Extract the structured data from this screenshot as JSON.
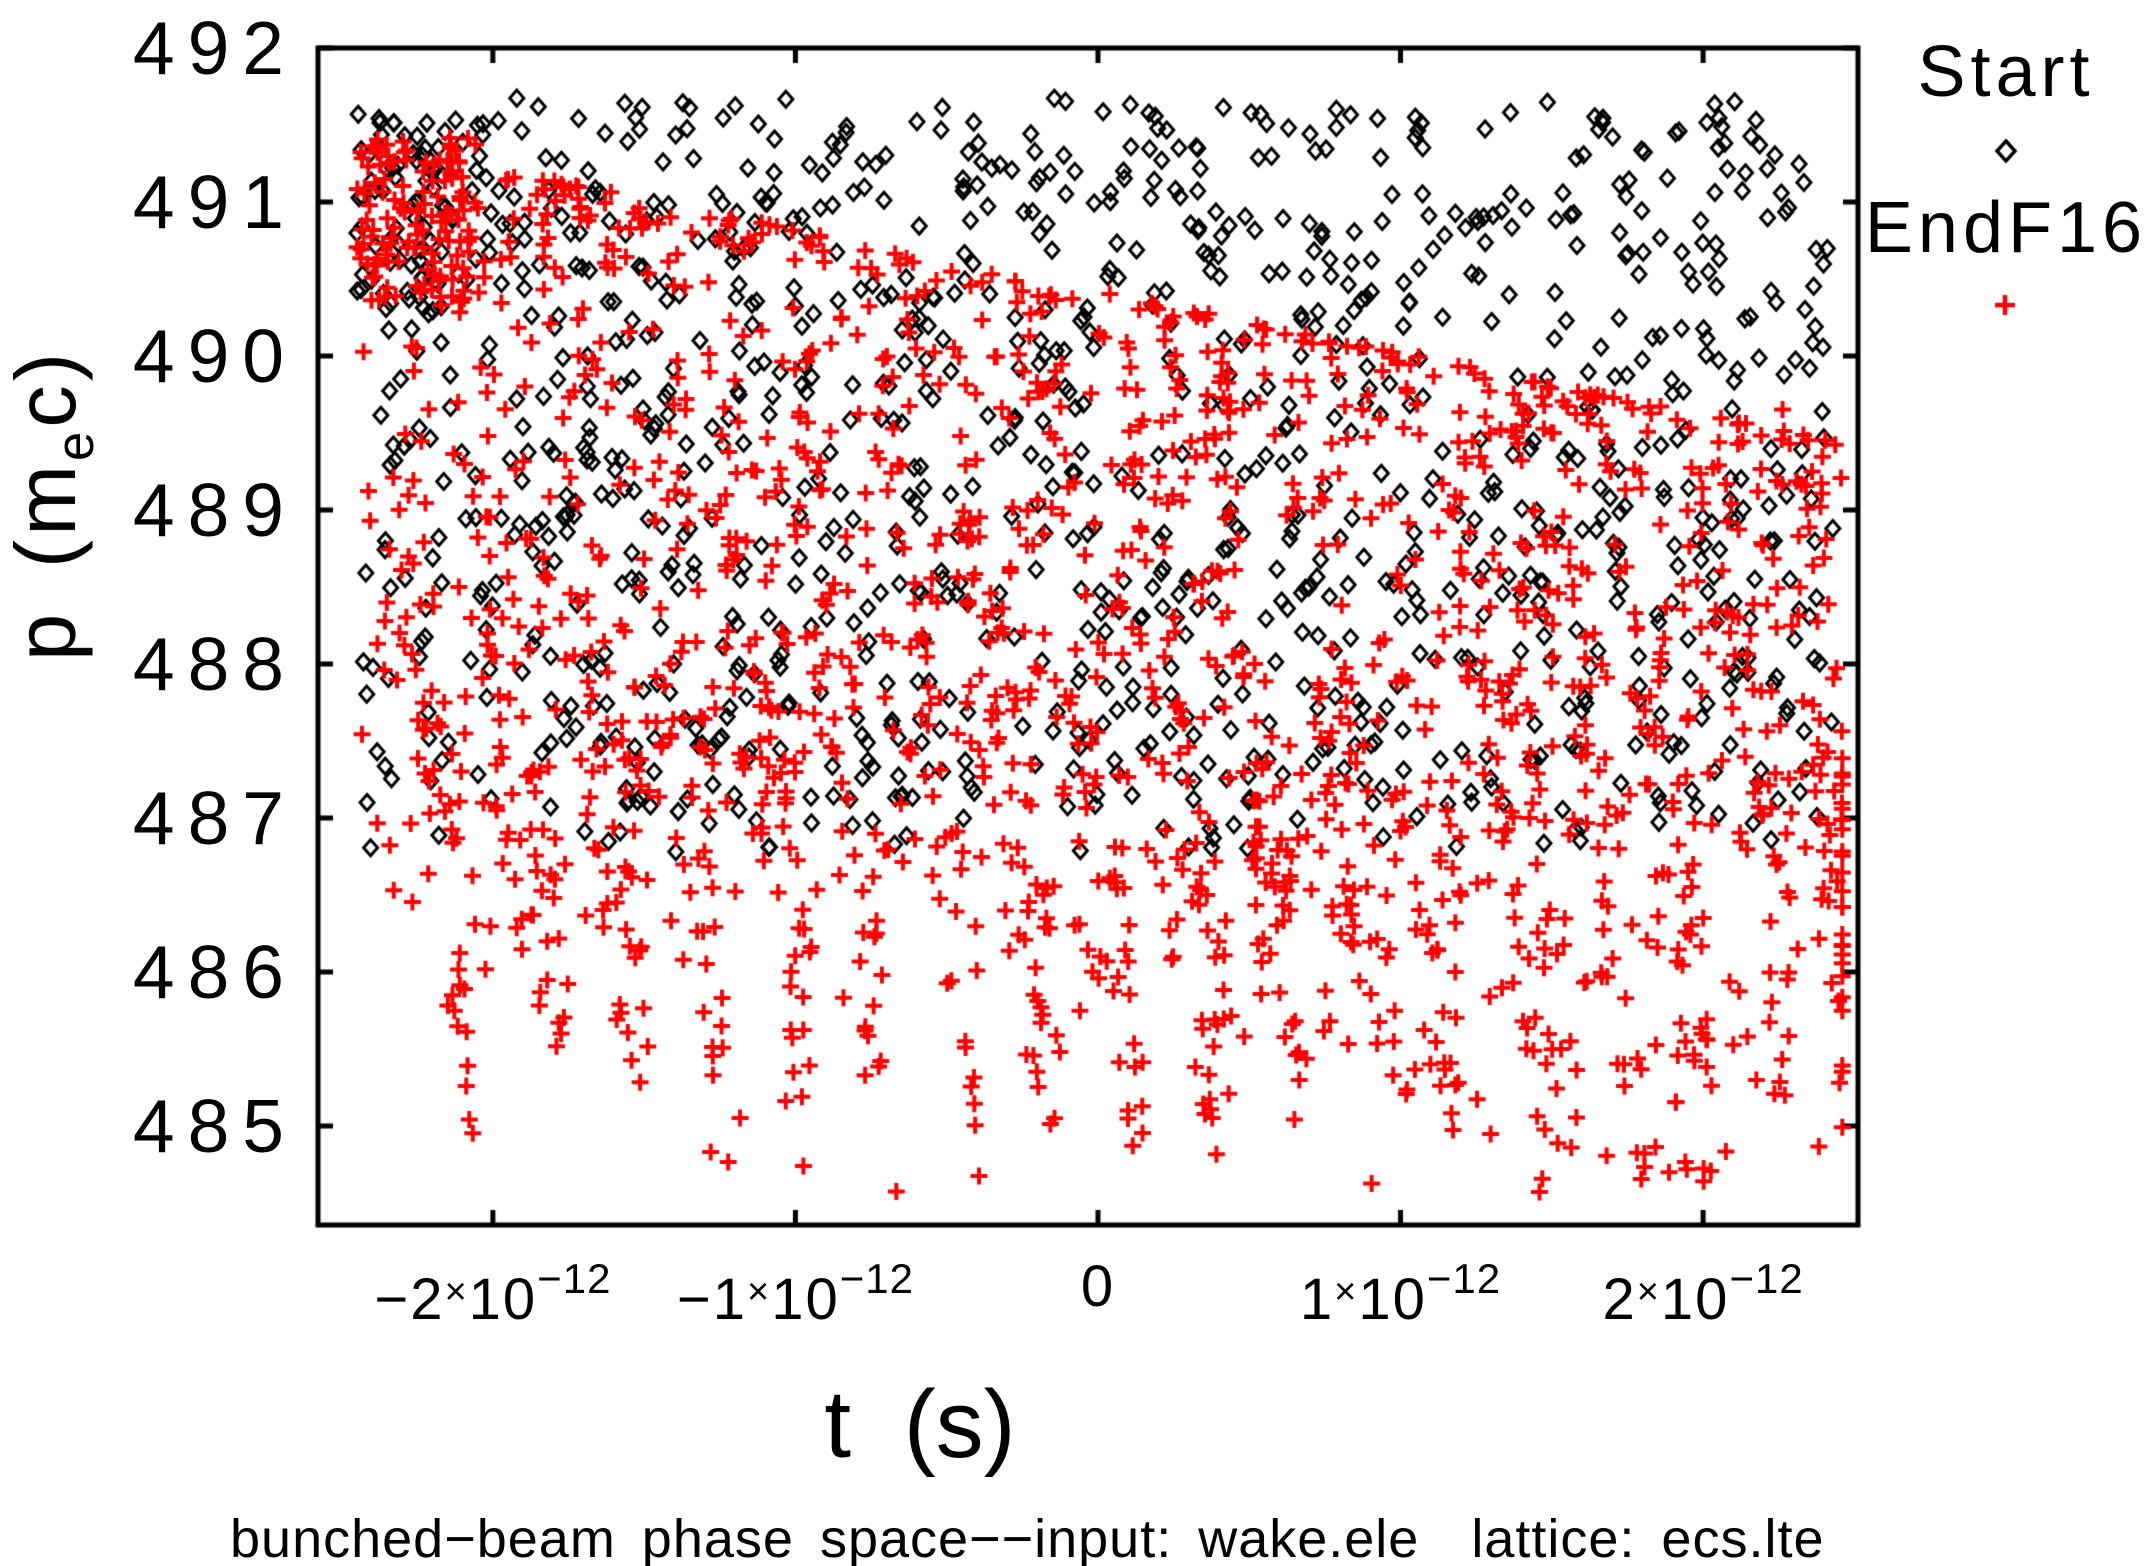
{
  "caption": "bunched−beam phase space−−input: wake.ele  lattice: ecs.lte",
  "chart_data": {
    "type": "scatter",
    "title": "bunched−beam phase space−−input: wake.ele  lattice: ecs.lte",
    "xlabel": "t (s)",
    "ylabel_parts": {
      "pre": "p (m",
      "sub": "e",
      "post": "c)"
    },
    "background": "#ffffff",
    "frame_color": "#000000",
    "grid": false,
    "time_unit_seconds": 1e-12,
    "x_axis": {
      "min_ps": -2.578,
      "max_ps": 2.512,
      "ticks": [
        {
          "value_ps": -2,
          "coeff": "−2",
          "base": "10",
          "exp": "−12"
        },
        {
          "value_ps": -1,
          "coeff": "−1",
          "base": "10",
          "exp": "−12"
        },
        {
          "value_ps": 0,
          "coeff": "0"
        },
        {
          "value_ps": 1,
          "coeff": "1",
          "base": "10",
          "exp": "−12"
        },
        {
          "value_ps": 2,
          "coeff": "2",
          "base": "10",
          "exp": "−12"
        }
      ]
    },
    "y_axis": {
      "min": 484.357,
      "max": 492.0,
      "ticks": [
        {
          "value": 492,
          "label": "492"
        },
        {
          "value": 491,
          "label": "491"
        },
        {
          "value": 490,
          "label": "490"
        },
        {
          "value": 489,
          "label": "489"
        },
        {
          "value": 488,
          "label": "488"
        },
        {
          "value": 487,
          "label": "487"
        },
        {
          "value": 486,
          "label": "486"
        },
        {
          "value": 485,
          "label": "485"
        }
      ]
    },
    "legend_position": "outside-top-right",
    "seed": 20240716,
    "series": [
      {
        "name": "Start",
        "marker": "diamond",
        "color": "#000000",
        "marker_w": 7,
        "marker_h": 8,
        "line_width": 3,
        "n": 1150,
        "distribution": "uniform",
        "t_range_ps": [
          -2.43,
          2.44
        ],
        "p_range": [
          487.0,
          491.68
        ],
        "lower_fuzz": {
          "fraction": 0.03,
          "depth": 0.22
        },
        "extra_cluster": {
          "n": 55,
          "t_range_ps": [
            -2.45,
            -2.12
          ],
          "p_range": [
            490.3,
            491.62
          ]
        }
      },
      {
        "name": "EndF16",
        "marker": "plus",
        "color": "#ff0000",
        "marker_s": 8.5,
        "line_width": 4,
        "n": 1800,
        "distribution": "sheared-band",
        "t_range_ps": [
          -2.44,
          2.46
        ],
        "top_edge": {
          "intercept": 490.42,
          "slope_per_ps": -0.4,
          "max": 491.45
        },
        "bottom_edge": {
          "intercept": 485.45,
          "slope_per_ps": -0.42
        },
        "top_bias_exp": 1.8,
        "streaks": {
          "count": 18,
          "fraction": 0.45,
          "t0_ps": -2.44,
          "spacing_ps": 0.272,
          "jitter_ps": 0.055,
          "shear_ps_per_unit": 0.08
        },
        "extra_cluster": {
          "n": 90,
          "t_range_ps": [
            -2.45,
            -2.05
          ],
          "p_range": [
            490.35,
            491.42
          ]
        }
      }
    ]
  }
}
